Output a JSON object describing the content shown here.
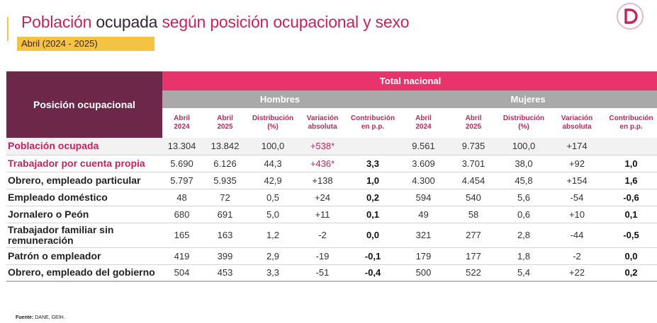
{
  "header": {
    "title_part1": "Población",
    "title_part2": "ocupada",
    "title_part3": "según posición ocupacional y sexo",
    "period": "Abril (2024 - 2025)"
  },
  "colors": {
    "magenta": "#c8225e",
    "plum": "#6d2849",
    "pink_bar": "#e8336c",
    "gray_bar": "#a9a9a9",
    "yellow": "#f5c342"
  },
  "logo_icon": "brand-d-logo",
  "table": {
    "corner_label": "Posición ocupacional",
    "total_label": "Total nacional",
    "groups": [
      "Hombres",
      "Mujeres"
    ],
    "subheaders": [
      [
        "Abril",
        "2024"
      ],
      [
        "Abril",
        "2025"
      ],
      [
        "Distribución",
        "(%)"
      ],
      [
        "Variación",
        "absoluta"
      ],
      [
        "Contribución",
        "en p.p."
      ],
      [
        "Abril",
        "2024"
      ],
      [
        "Abril",
        "2025"
      ],
      [
        "Distribución",
        "(%)"
      ],
      [
        "Variación",
        "absoluta"
      ],
      [
        "Contribución",
        "en p.p."
      ]
    ],
    "rows": [
      {
        "label": "Población ocupada",
        "cells": [
          "13.304",
          "13.842",
          "100,0",
          "+538*",
          "",
          "9.561",
          "9.735",
          "100,0",
          "+174",
          ""
        ]
      },
      {
        "label": "Trabajador por cuenta propia",
        "cells": [
          "5.690",
          "6.126",
          "44,3",
          "+436*",
          "3,3",
          "3.609",
          "3.701",
          "38,0",
          "+92",
          "1,0"
        ]
      },
      {
        "label": "Obrero, empleado particular",
        "cells": [
          "5.797",
          "5.935",
          "42,9",
          "+138",
          "1,0",
          "4.300",
          "4.454",
          "45,8",
          "+154",
          "1,6"
        ]
      },
      {
        "label": "Empleado doméstico",
        "cells": [
          "48",
          "72",
          "0,5",
          "+24",
          "0,2",
          "594",
          "540",
          "5,6",
          "-54",
          "-0,6"
        ]
      },
      {
        "label": "Jornalero o Peón",
        "cells": [
          "680",
          "691",
          "5,0",
          "+11",
          "0,1",
          "49",
          "58",
          "0,6",
          "+10",
          "0,1"
        ]
      },
      {
        "label": "Trabajador familiar sin remuneración",
        "cells": [
          "165",
          "163",
          "1,2",
          "-2",
          "0,0",
          "321",
          "277",
          "2,8",
          "-44",
          "-0,5"
        ]
      },
      {
        "label": "Patrón o empleador",
        "cells": [
          "419",
          "399",
          "2,9",
          "-19",
          "-0,1",
          "179",
          "177",
          "1,8",
          "-2",
          "0,0"
        ]
      },
      {
        "label": "Obrero, empleado del gobierno",
        "cells": [
          "504",
          "453",
          "3,3",
          "-51",
          "-0,4",
          "500",
          "522",
          "5,4",
          "+22",
          "0,2"
        ]
      }
    ]
  },
  "footer": {
    "source_label": "Fuente:",
    "source_text": "DANE, GEIH."
  }
}
